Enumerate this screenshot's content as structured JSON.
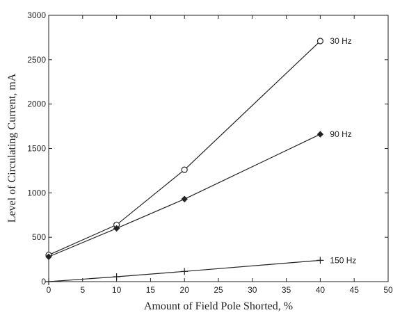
{
  "chart_data": {
    "type": "line",
    "title": "",
    "xlabel": "Amount of Field Pole Shorted, %",
    "ylabel": "Level of Circulating Current, mA",
    "xlim": [
      0,
      50
    ],
    "ylim": [
      0,
      3000
    ],
    "x_ticks": [
      0,
      5,
      10,
      15,
      20,
      25,
      30,
      35,
      40,
      45,
      50
    ],
    "y_ticks": [
      0,
      500,
      1000,
      1500,
      2000,
      2500,
      3000
    ],
    "x_tick_labels": [
      "0",
      "5",
      "10",
      "15",
      "20",
      "25",
      "30",
      "35",
      "40",
      "45",
      "50"
    ],
    "y_tick_labels": [
      "0",
      "500",
      "1000",
      "1500",
      "2000",
      "2500",
      "3000"
    ],
    "grid": false,
    "legend": "inline labels at line ends",
    "series": [
      {
        "name": "30 Hz",
        "marker": "circle",
        "x": [
          0,
          10,
          20,
          40
        ],
        "y": [
          300,
          640,
          1260,
          2710
        ]
      },
      {
        "name": "90 Hz",
        "marker": "diamond",
        "x": [
          0,
          10,
          20,
          40
        ],
        "y": [
          280,
          600,
          930,
          1660
        ]
      },
      {
        "name": "150 Hz",
        "marker": "plus",
        "x": [
          0,
          10,
          20,
          40
        ],
        "y": [
          0,
          55,
          115,
          240
        ]
      }
    ],
    "colors": {
      "line": "#222222",
      "axis": "#222222",
      "background": "#ffffff"
    }
  }
}
